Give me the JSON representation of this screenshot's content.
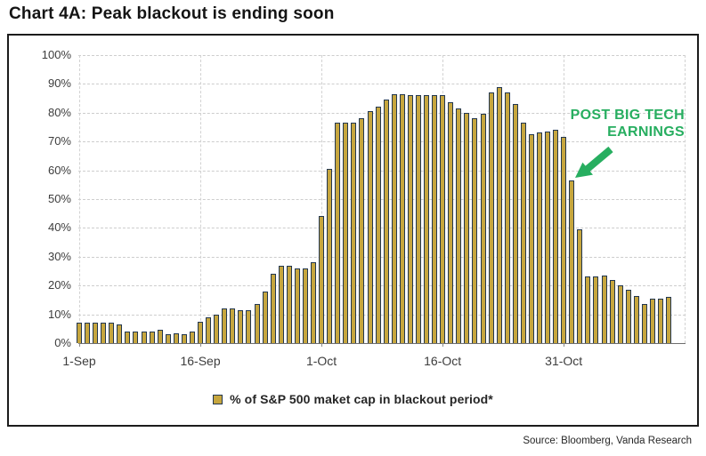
{
  "page": {
    "title": "Chart 4A: Peak blackout is ending soon",
    "source": "Source: Bloomberg, Vanda Research"
  },
  "legend": {
    "label": "% of S&P 500 maket cap in blackout period*"
  },
  "annotation": {
    "line1": "POST BIG TECH",
    "line2": "EARNINGS"
  },
  "chart_data": {
    "type": "bar",
    "title": "Chart 4A: Peak blackout is ending soon",
    "x_unit": "daily, 1-Sep through 13-Nov",
    "x_tick_labels": [
      "1-Sep",
      "16-Sep",
      "1-Oct",
      "16-Oct",
      "31-Oct"
    ],
    "x_tick_day_indices": [
      0,
      15,
      30,
      45,
      60
    ],
    "y_tick_labels": [
      "0%",
      "10%",
      "20%",
      "30%",
      "40%",
      "50%",
      "60%",
      "70%",
      "80%",
      "90%",
      "100%"
    ],
    "y_ticks": [
      0,
      10,
      20,
      30,
      40,
      50,
      60,
      70,
      80,
      90,
      100
    ],
    "ylim": [
      0,
      100
    ],
    "grid": true,
    "legend_position": "bottom",
    "series": [
      {
        "name": "% of S&P 500 maket cap in blackout period*",
        "values": [
          7,
          7,
          7,
          7,
          7,
          6.5,
          4,
          4,
          4,
          4,
          4.5,
          3,
          3.5,
          3,
          4,
          7.5,
          9,
          10,
          12,
          12,
          11.5,
          11.5,
          13.5,
          18,
          24,
          27,
          27,
          26,
          26,
          28,
          44,
          60.5,
          76.5,
          76.5,
          76.5,
          78,
          80.5,
          82,
          84.5,
          86.5,
          86.5,
          86,
          86,
          86,
          86,
          86,
          83.5,
          81.5,
          80,
          78,
          79.5,
          87,
          89,
          87,
          83,
          76.5,
          72.5,
          73,
          73.5,
          74,
          71.5,
          56.5,
          39.5,
          23,
          23,
          23.5,
          22,
          20,
          18.5,
          16.5,
          13.5,
          15.5,
          15.5,
          16
        ]
      }
    ],
    "annotation": {
      "text": "POST BIG TECH EARNINGS",
      "points_to_day_index": 61,
      "points_to_value": 56.5
    },
    "colors": {
      "bar_fill": "#c6a63e",
      "bar_border": "#233750",
      "annotation_green": "#27ae60"
    }
  }
}
